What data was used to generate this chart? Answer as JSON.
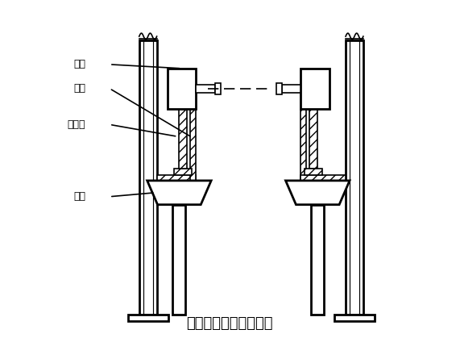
{
  "title": "下轨道铺设角铁示意图",
  "title_fontsize": 13,
  "labels": [
    "滚轮",
    "角铁",
    "下轨道",
    "支架"
  ],
  "line_color": "#000000",
  "bg_color": "#ffffff",
  "lw": 1.2,
  "lw_thick": 2.0
}
